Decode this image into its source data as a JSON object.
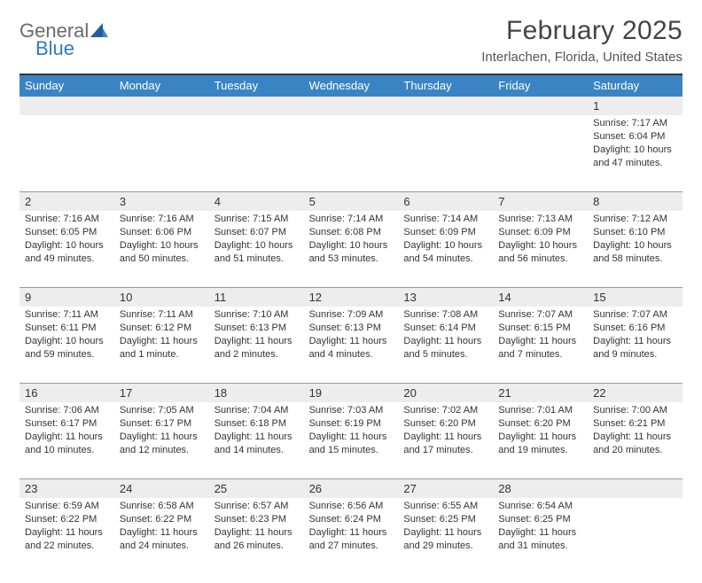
{
  "brand": {
    "top": "General",
    "bottom": "Blue"
  },
  "title": "February 2025",
  "subtitle": "Interlachen, Florida, United States",
  "colors": {
    "header_bg": "#3b84c4",
    "header_text": "#ffffff",
    "daynum_bg": "#ededed",
    "divider": "#8aa0b0",
    "top_border": "#333333",
    "text": "#333333",
    "logo_gray": "#6a6a6a",
    "logo_blue": "#2f7bbf"
  },
  "day_names": [
    "Sunday",
    "Monday",
    "Tuesday",
    "Wednesday",
    "Thursday",
    "Friday",
    "Saturday"
  ],
  "weeks": [
    [
      {
        "n": "",
        "sr": "",
        "ss": "",
        "dl": ""
      },
      {
        "n": "",
        "sr": "",
        "ss": "",
        "dl": ""
      },
      {
        "n": "",
        "sr": "",
        "ss": "",
        "dl": ""
      },
      {
        "n": "",
        "sr": "",
        "ss": "",
        "dl": ""
      },
      {
        "n": "",
        "sr": "",
        "ss": "",
        "dl": ""
      },
      {
        "n": "",
        "sr": "",
        "ss": "",
        "dl": ""
      },
      {
        "n": "1",
        "sr": "Sunrise: 7:17 AM",
        "ss": "Sunset: 6:04 PM",
        "dl": "Daylight: 10 hours and 47 minutes."
      }
    ],
    [
      {
        "n": "2",
        "sr": "Sunrise: 7:16 AM",
        "ss": "Sunset: 6:05 PM",
        "dl": "Daylight: 10 hours and 49 minutes."
      },
      {
        "n": "3",
        "sr": "Sunrise: 7:16 AM",
        "ss": "Sunset: 6:06 PM",
        "dl": "Daylight: 10 hours and 50 minutes."
      },
      {
        "n": "4",
        "sr": "Sunrise: 7:15 AM",
        "ss": "Sunset: 6:07 PM",
        "dl": "Daylight: 10 hours and 51 minutes."
      },
      {
        "n": "5",
        "sr": "Sunrise: 7:14 AM",
        "ss": "Sunset: 6:08 PM",
        "dl": "Daylight: 10 hours and 53 minutes."
      },
      {
        "n": "6",
        "sr": "Sunrise: 7:14 AM",
        "ss": "Sunset: 6:09 PM",
        "dl": "Daylight: 10 hours and 54 minutes."
      },
      {
        "n": "7",
        "sr": "Sunrise: 7:13 AM",
        "ss": "Sunset: 6:09 PM",
        "dl": "Daylight: 10 hours and 56 minutes."
      },
      {
        "n": "8",
        "sr": "Sunrise: 7:12 AM",
        "ss": "Sunset: 6:10 PM",
        "dl": "Daylight: 10 hours and 58 minutes."
      }
    ],
    [
      {
        "n": "9",
        "sr": "Sunrise: 7:11 AM",
        "ss": "Sunset: 6:11 PM",
        "dl": "Daylight: 10 hours and 59 minutes."
      },
      {
        "n": "10",
        "sr": "Sunrise: 7:11 AM",
        "ss": "Sunset: 6:12 PM",
        "dl": "Daylight: 11 hours and 1 minute."
      },
      {
        "n": "11",
        "sr": "Sunrise: 7:10 AM",
        "ss": "Sunset: 6:13 PM",
        "dl": "Daylight: 11 hours and 2 minutes."
      },
      {
        "n": "12",
        "sr": "Sunrise: 7:09 AM",
        "ss": "Sunset: 6:13 PM",
        "dl": "Daylight: 11 hours and 4 minutes."
      },
      {
        "n": "13",
        "sr": "Sunrise: 7:08 AM",
        "ss": "Sunset: 6:14 PM",
        "dl": "Daylight: 11 hours and 5 minutes."
      },
      {
        "n": "14",
        "sr": "Sunrise: 7:07 AM",
        "ss": "Sunset: 6:15 PM",
        "dl": "Daylight: 11 hours and 7 minutes."
      },
      {
        "n": "15",
        "sr": "Sunrise: 7:07 AM",
        "ss": "Sunset: 6:16 PM",
        "dl": "Daylight: 11 hours and 9 minutes."
      }
    ],
    [
      {
        "n": "16",
        "sr": "Sunrise: 7:06 AM",
        "ss": "Sunset: 6:17 PM",
        "dl": "Daylight: 11 hours and 10 minutes."
      },
      {
        "n": "17",
        "sr": "Sunrise: 7:05 AM",
        "ss": "Sunset: 6:17 PM",
        "dl": "Daylight: 11 hours and 12 minutes."
      },
      {
        "n": "18",
        "sr": "Sunrise: 7:04 AM",
        "ss": "Sunset: 6:18 PM",
        "dl": "Daylight: 11 hours and 14 minutes."
      },
      {
        "n": "19",
        "sr": "Sunrise: 7:03 AM",
        "ss": "Sunset: 6:19 PM",
        "dl": "Daylight: 11 hours and 15 minutes."
      },
      {
        "n": "20",
        "sr": "Sunrise: 7:02 AM",
        "ss": "Sunset: 6:20 PM",
        "dl": "Daylight: 11 hours and 17 minutes."
      },
      {
        "n": "21",
        "sr": "Sunrise: 7:01 AM",
        "ss": "Sunset: 6:20 PM",
        "dl": "Daylight: 11 hours and 19 minutes."
      },
      {
        "n": "22",
        "sr": "Sunrise: 7:00 AM",
        "ss": "Sunset: 6:21 PM",
        "dl": "Daylight: 11 hours and 20 minutes."
      }
    ],
    [
      {
        "n": "23",
        "sr": "Sunrise: 6:59 AM",
        "ss": "Sunset: 6:22 PM",
        "dl": "Daylight: 11 hours and 22 minutes."
      },
      {
        "n": "24",
        "sr": "Sunrise: 6:58 AM",
        "ss": "Sunset: 6:22 PM",
        "dl": "Daylight: 11 hours and 24 minutes."
      },
      {
        "n": "25",
        "sr": "Sunrise: 6:57 AM",
        "ss": "Sunset: 6:23 PM",
        "dl": "Daylight: 11 hours and 26 minutes."
      },
      {
        "n": "26",
        "sr": "Sunrise: 6:56 AM",
        "ss": "Sunset: 6:24 PM",
        "dl": "Daylight: 11 hours and 27 minutes."
      },
      {
        "n": "27",
        "sr": "Sunrise: 6:55 AM",
        "ss": "Sunset: 6:25 PM",
        "dl": "Daylight: 11 hours and 29 minutes."
      },
      {
        "n": "28",
        "sr": "Sunrise: 6:54 AM",
        "ss": "Sunset: 6:25 PM",
        "dl": "Daylight: 11 hours and 31 minutes."
      },
      {
        "n": "",
        "sr": "",
        "ss": "",
        "dl": ""
      }
    ]
  ]
}
